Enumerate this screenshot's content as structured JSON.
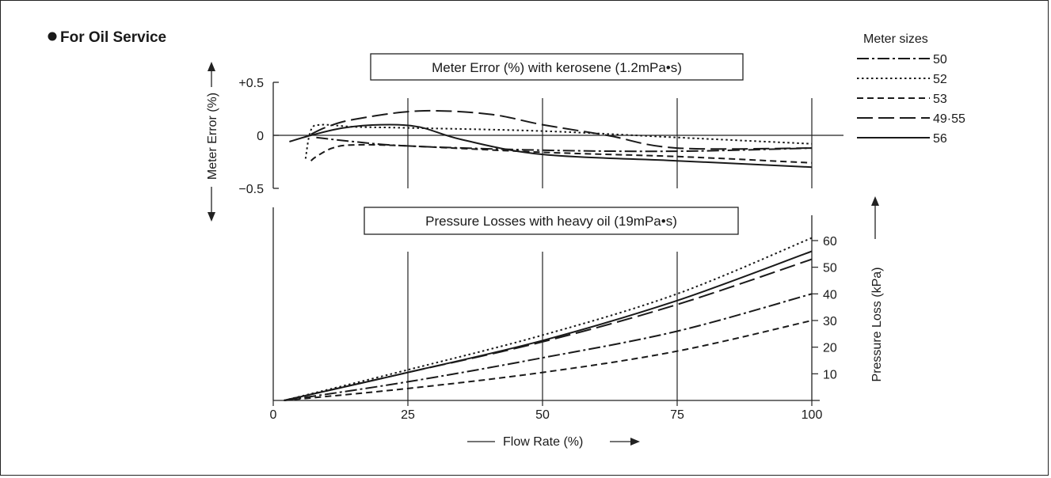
{
  "section_title": "For Oil Service",
  "chart_data": [
    {
      "type": "line",
      "title": "Meter Error (%)  with kerosene (1.2mPa•s)",
      "ylabel": "Meter Error (%)",
      "xlabel": "",
      "xlim": [
        0,
        100
      ],
      "ylim": [
        -0.5,
        0.5
      ],
      "y_ticks": [
        "+0.5",
        "0",
        "−0.5"
      ],
      "y_tick_values": [
        0.5,
        0,
        -0.5
      ],
      "x_gridlines": [
        25,
        50,
        75,
        100
      ],
      "zero_line": true,
      "series": [
        {
          "name": "50",
          "style": "dashdot",
          "x": [
            8,
            15,
            25,
            50,
            75,
            100
          ],
          "y": [
            -0.02,
            -0.06,
            -0.1,
            -0.14,
            -0.15,
            -0.12
          ]
        },
        {
          "name": "52",
          "style": "dotted",
          "x": [
            6,
            7,
            9,
            15,
            25,
            50,
            75,
            100
          ],
          "y": [
            -0.22,
            0.05,
            0.1,
            0.08,
            0.07,
            0.04,
            -0.02,
            -0.08
          ]
        },
        {
          "name": "53",
          "style": "dashed",
          "x": [
            7,
            8,
            11,
            15,
            25,
            50,
            75,
            100
          ],
          "y": [
            -0.24,
            -0.2,
            -0.12,
            -0.09,
            -0.1,
            -0.16,
            -0.2,
            -0.26
          ]
        },
        {
          "name": "49·55",
          "style": "longdash",
          "x": [
            7,
            10,
            15,
            27,
            40,
            50,
            62,
            75,
            100
          ],
          "y": [
            0.01,
            0.08,
            0.15,
            0.23,
            0.2,
            0.1,
            0.0,
            -0.12,
            -0.12
          ]
        },
        {
          "name": "56",
          "style": "solid",
          "x": [
            3,
            7,
            13,
            20,
            27,
            35,
            50,
            75,
            100
          ],
          "y": [
            -0.06,
            0.0,
            0.07,
            0.1,
            0.08,
            -0.04,
            -0.18,
            -0.24,
            -0.3
          ]
        }
      ]
    },
    {
      "type": "line",
      "title": "Pressure Losses with heavy oil (19mPa•s)",
      "ylabel": "Pressure Loss (kPa)",
      "xlabel": "Flow Rate (%)",
      "xlim": [
        0,
        100
      ],
      "ylim": [
        0,
        60
      ],
      "x_ticks": [
        "0",
        "25",
        "50",
        "75",
        "100"
      ],
      "y_ticks": [
        "10",
        "20",
        "30",
        "40",
        "50",
        "60"
      ],
      "x_gridlines": [
        25,
        50,
        75,
        100
      ],
      "series": [
        {
          "name": "50",
          "style": "dashdot",
          "x": [
            2,
            25,
            50,
            75,
            100
          ],
          "y": [
            0,
            7,
            16,
            26,
            40
          ]
        },
        {
          "name": "52",
          "style": "dotted",
          "x": [
            2,
            25,
            50,
            75,
            100
          ],
          "y": [
            0,
            11.5,
            24.5,
            40,
            61
          ]
        },
        {
          "name": "53",
          "style": "dashed",
          "x": [
            2,
            25,
            50,
            75,
            100
          ],
          "y": [
            0,
            4.5,
            10.5,
            18.5,
            30
          ]
        },
        {
          "name": "49·55",
          "style": "longdash",
          "x": [
            2,
            25,
            50,
            75,
            100
          ],
          "y": [
            0,
            10.5,
            22,
            36,
            53
          ]
        },
        {
          "name": "56",
          "style": "solid",
          "x": [
            2,
            25,
            50,
            75,
            100
          ],
          "y": [
            0,
            10.5,
            22.5,
            37.5,
            56
          ]
        }
      ]
    }
  ],
  "legend": {
    "title": "Meter sizes",
    "items": [
      {
        "label": "50",
        "style": "dashdot"
      },
      {
        "label": "52",
        "style": "dotted"
      },
      {
        "label": "53",
        "style": "dashed"
      },
      {
        "label": "49·55",
        "style": "longdash"
      },
      {
        "label": "56",
        "style": "solid"
      }
    ]
  }
}
